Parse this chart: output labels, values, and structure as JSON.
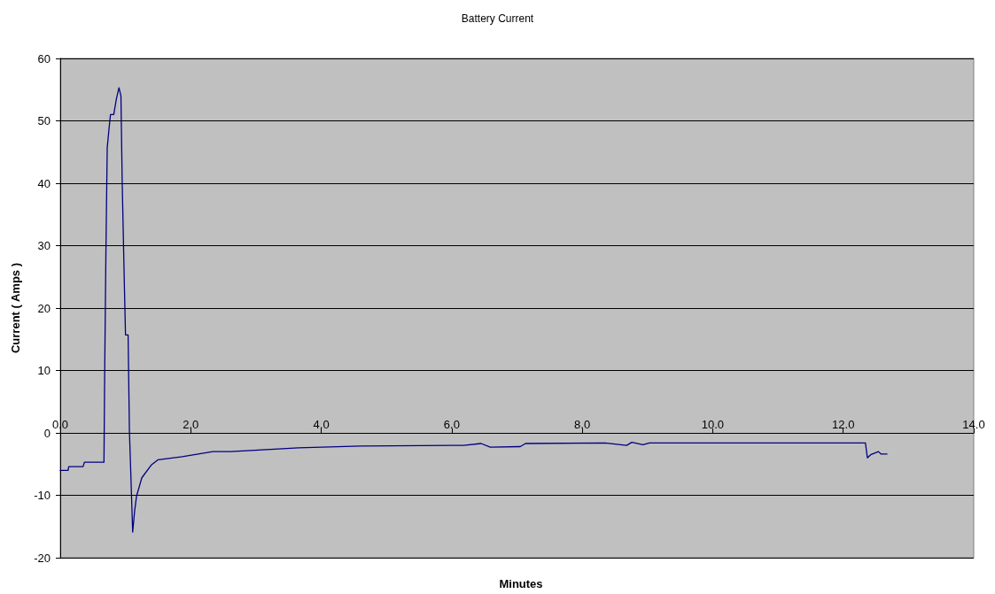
{
  "chart_data": {
    "type": "line",
    "title": "Battery Current",
    "xlabel": "Minutes",
    "ylabel": "Current ( Amps )",
    "xlim": [
      0,
      14
    ],
    "ylim": [
      -20,
      60
    ],
    "xticks": [
      {
        "value": 0,
        "label": "0.0"
      },
      {
        "value": 2,
        "label": "2.0"
      },
      {
        "value": 4,
        "label": "4.0"
      },
      {
        "value": 6,
        "label": "6.0"
      },
      {
        "value": 8,
        "label": "8.0"
      },
      {
        "value": 10,
        "label": "10.0"
      },
      {
        "value": 12,
        "label": "12.0"
      },
      {
        "value": 14,
        "label": "14.0"
      }
    ],
    "yticks": [
      -20,
      -10,
      0,
      10,
      20,
      30,
      40,
      50,
      60
    ],
    "grid": "y",
    "marker": "none",
    "line_style": "solid",
    "series": [
      {
        "color": "#000080",
        "x": [
          0,
          0.12,
          0.13,
          0.35,
          0.37,
          0.67,
          0.68,
          0.7,
          0.72,
          0.75,
          0.77,
          0.82,
          0.86,
          0.9,
          0.93,
          0.95,
          0.98,
          1.0,
          1.04,
          1.06,
          1.11,
          1.14,
          1.17,
          1.25,
          1.4,
          1.5,
          1.87,
          2.34,
          2.61,
          3.65,
          4.6,
          6.18,
          6.45,
          6.59,
          7.05,
          7.13,
          8.35,
          8.68,
          8.76,
          8.93,
          9.03,
          12.34,
          12.37,
          12.42,
          12.54,
          12.58,
          12.67
        ],
        "values": [
          -6.0,
          -6.0,
          -5.4,
          -5.4,
          -4.7,
          -4.7,
          8.4,
          29,
          45.7,
          49,
          51,
          51,
          53.5,
          55.3,
          54,
          39.9,
          25,
          15.7,
          15.7,
          0.4,
          -15.9,
          -12.5,
          -10.1,
          -7.2,
          -5.1,
          -4.3,
          -3.8,
          -3.0,
          -3.0,
          -2.4,
          -2.1,
          -2.0,
          -1.7,
          -2.3,
          -2.2,
          -1.7,
          -1.6,
          -2.0,
          -1.5,
          -1.9,
          -1.6,
          -1.6,
          -4.0,
          -3.5,
          -3.0,
          -3.4,
          -3.4
        ]
      }
    ]
  }
}
